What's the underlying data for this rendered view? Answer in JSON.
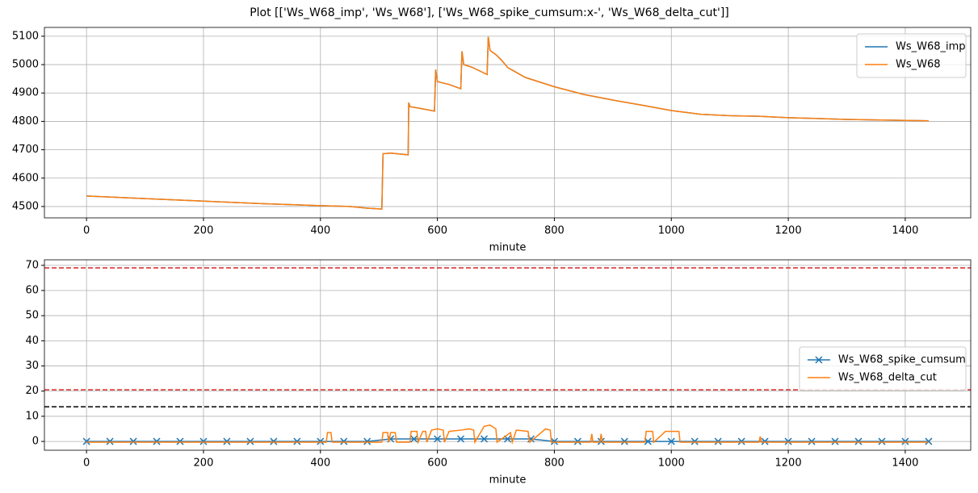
{
  "title": "Plot [['Ws_W68_imp', 'Ws_W68'], ['Ws_W68_spike_cumsum:x-', 'Ws_W68_delta_cut']]",
  "chart_data": [
    {
      "type": "line",
      "xlabel": "minute",
      "xlim": [
        -72,
        1512
      ],
      "ylim": [
        4460,
        5131
      ],
      "xticks": [
        0,
        200,
        400,
        600,
        800,
        1000,
        1200,
        1400
      ],
      "yticks": [
        4500,
        4600,
        4700,
        4800,
        4900,
        5000,
        5100
      ],
      "grid": true,
      "legend": "upper right",
      "series": [
        {
          "name": "Ws_W68_imp",
          "color": "#1f77b4",
          "x": [
            0,
            100,
            200,
            300,
            400,
            450,
            480,
            505,
            507,
            520,
            550,
            551,
            553,
            570,
            595,
            597,
            600,
            620,
            640,
            642,
            645,
            660,
            685,
            687,
            690,
            700,
            710,
            720,
            750,
            800,
            850,
            900,
            950,
            1000,
            1050,
            1100,
            1150,
            1200,
            1300,
            1440
          ],
          "values": [
            4537,
            4528,
            4519,
            4510,
            4503,
            4500,
            4494,
            4491,
            4686,
            4688,
            4682,
            4866,
            4852,
            4846,
            4836,
            4982,
            4940,
            4930,
            4915,
            5047,
            5000,
            4990,
            4965,
            5098,
            5050,
            5035,
            5015,
            4990,
            4955,
            4922,
            4895,
            4875,
            4857,
            4838,
            4825,
            4820,
            4818,
            4813,
            4807,
            4802
          ]
        },
        {
          "name": "Ws_W68",
          "color": "#ff7f0e",
          "x": [
            0,
            100,
            200,
            300,
            400,
            450,
            480,
            505,
            507,
            520,
            550,
            551,
            553,
            570,
            595,
            597,
            600,
            620,
            640,
            642,
            645,
            660,
            685,
            687,
            690,
            700,
            710,
            720,
            750,
            800,
            850,
            900,
            950,
            1000,
            1050,
            1100,
            1150,
            1200,
            1300,
            1440
          ],
          "values": [
            4537,
            4528,
            4519,
            4510,
            4503,
            4500,
            4494,
            4491,
            4686,
            4688,
            4682,
            4866,
            4852,
            4846,
            4836,
            4982,
            4940,
            4930,
            4915,
            5047,
            5000,
            4990,
            4965,
            5098,
            5050,
            5035,
            5015,
            4990,
            4955,
            4922,
            4895,
            4875,
            4857,
            4838,
            4825,
            4820,
            4818,
            4813,
            4807,
            4802
          ]
        }
      ]
    },
    {
      "type": "line",
      "xlabel": "minute",
      "xlim": [
        -72,
        1512
      ],
      "ylim": [
        -3.5,
        72.2
      ],
      "xticks": [
        0,
        200,
        400,
        600,
        800,
        1000,
        1200,
        1400
      ],
      "yticks": [
        0,
        10,
        20,
        30,
        40,
        50,
        60,
        70
      ],
      "grid": true,
      "legend": "center right",
      "hlines": [
        {
          "y": 69,
          "color": "#d62728"
        },
        {
          "y": 20.5,
          "color": "#d62728"
        },
        {
          "y": 13.8,
          "color": "#000000"
        }
      ],
      "series": [
        {
          "name": "Ws_W68_spike_cumsum",
          "color": "#1f77b4",
          "marker": "x",
          "x": [
            0,
            40,
            80,
            120,
            160,
            200,
            240,
            280,
            320,
            360,
            400,
            440,
            480,
            520,
            560,
            600,
            640,
            680,
            720,
            760,
            800,
            840,
            880,
            920,
            960,
            1000,
            1040,
            1080,
            1120,
            1160,
            1200,
            1240,
            1280,
            1320,
            1360,
            1400,
            1440
          ],
          "values": [
            0,
            0,
            0,
            0,
            0,
            0,
            0,
            0,
            0,
            0,
            0,
            0,
            0,
            1,
            1,
            1,
            1,
            1,
            1,
            1,
            0,
            0,
            0,
            0,
            0,
            0,
            0,
            0,
            0,
            0,
            0,
            0,
            0,
            0,
            0,
            0,
            0
          ]
        },
        {
          "name": "Ws_W68_delta_cut",
          "color": "#ff7f0e",
          "x": [
            0,
            410,
            412,
            418,
            420,
            505,
            507,
            515,
            517,
            520,
            528,
            530,
            553,
            555,
            565,
            567,
            575,
            580,
            582,
            590,
            600,
            610,
            612,
            620,
            640,
            655,
            662,
            664,
            680,
            690,
            700,
            702,
            725,
            728,
            735,
            755,
            758,
            785,
            793,
            795,
            862,
            864,
            866,
            878,
            880,
            882,
            955,
            957,
            968,
            970,
            990,
            1013,
            1015,
            1150,
            1152,
            1154,
            1440
          ],
          "values": [
            -0.3,
            -0.3,
            3.5,
            3.5,
            -0.3,
            -0.3,
            3.5,
            3.5,
            -0.3,
            3.5,
            3.5,
            -0.3,
            -0.3,
            4,
            4,
            -0.3,
            4,
            4,
            -0.3,
            4.5,
            5,
            4.5,
            -0.3,
            4,
            4.5,
            5,
            4.5,
            -0.3,
            6,
            6.5,
            5,
            -0.3,
            3.5,
            -0.3,
            4.5,
            4,
            -0.3,
            5,
            4.5,
            -0.3,
            -0.3,
            3,
            -0.3,
            -0.3,
            3,
            -0.3,
            -0.3,
            4,
            4,
            -0.3,
            4,
            4,
            -0.3,
            -0.3,
            2,
            -0.3,
            -0.3
          ]
        }
      ]
    }
  ]
}
